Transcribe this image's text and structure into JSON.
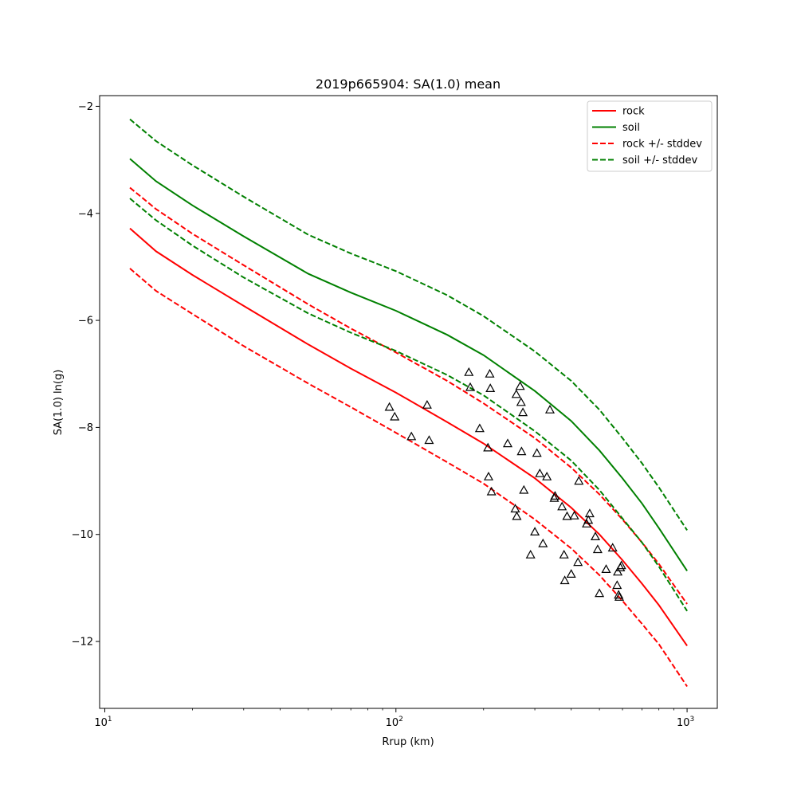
{
  "chart_data": {
    "type": "line",
    "title": "2019p665904: SA(1.0) mean",
    "xlabel": "Rrup (km)",
    "ylabel": "SA(1.0) ln(g)",
    "xscale": "log",
    "xlim": [
      9.6,
      1270
    ],
    "ylim": [
      -13.25,
      -1.8
    ],
    "xticks": [
      {
        "value": 10,
        "base": "10",
        "exp": "1"
      },
      {
        "value": 100,
        "base": "10",
        "exp": "2"
      },
      {
        "value": 1000,
        "base": "10",
        "exp": "3"
      }
    ],
    "yticks": [
      {
        "value": -2,
        "label": "−2"
      },
      {
        "value": -4,
        "label": "−4"
      },
      {
        "value": -6,
        "label": "−6"
      },
      {
        "value": -8,
        "label": "−8"
      },
      {
        "value": -10,
        "label": "−10"
      },
      {
        "value": -12,
        "label": "−12"
      }
    ],
    "grid": false,
    "legend_position": "top-right",
    "x": [
      12.2,
      15,
      20,
      30,
      50,
      70,
      100,
      150,
      200,
      300,
      400,
      500,
      600,
      700,
      800,
      1000
    ],
    "series": [
      {
        "name": "rock",
        "color": "#ff0000",
        "style": "solid",
        "values": [
          -4.28,
          -4.71,
          -5.15,
          -5.73,
          -6.45,
          -6.9,
          -7.35,
          -7.9,
          -8.3,
          -8.95,
          -9.5,
          -10.0,
          -10.48,
          -10.92,
          -11.32,
          -12.08
        ]
      },
      {
        "name": "soil",
        "color": "#008000",
        "style": "solid",
        "values": [
          -2.98,
          -3.4,
          -3.85,
          -4.43,
          -5.13,
          -5.48,
          -5.82,
          -6.27,
          -6.65,
          -7.32,
          -7.88,
          -8.43,
          -8.95,
          -9.42,
          -9.88,
          -10.68
        ]
      },
      {
        "name": "rock +/- stddev",
        "color": "#ff0000",
        "style": "dashed",
        "legend": true,
        "values": [
          -3.52,
          -3.92,
          -4.38,
          -4.97,
          -5.7,
          -6.15,
          -6.6,
          -7.13,
          -7.55,
          -8.2,
          -8.75,
          -9.25,
          -9.72,
          -10.15,
          -10.55,
          -11.3
        ]
      },
      {
        "name": "rock +/- stddev",
        "color": "#ff0000",
        "style": "dashed",
        "legend": false,
        "values": [
          -5.03,
          -5.45,
          -5.88,
          -6.48,
          -7.18,
          -7.62,
          -8.1,
          -8.65,
          -9.05,
          -9.72,
          -10.26,
          -10.76,
          -11.24,
          -11.67,
          -12.05,
          -12.84
        ]
      },
      {
        "name": "soil +/- stddev",
        "color": "#008000",
        "style": "dashed",
        "legend": true,
        "values": [
          -2.24,
          -2.65,
          -3.1,
          -3.69,
          -4.4,
          -4.75,
          -5.08,
          -5.53,
          -5.92,
          -6.58,
          -7.13,
          -7.67,
          -8.2,
          -8.67,
          -9.12,
          -9.92
        ]
      },
      {
        "name": "soil +/- stddev",
        "color": "#008000",
        "style": "dashed",
        "legend": false,
        "values": [
          -3.72,
          -4.13,
          -4.6,
          -5.2,
          -5.87,
          -6.23,
          -6.57,
          -7.02,
          -7.4,
          -8.07,
          -8.62,
          -9.17,
          -9.7,
          -10.15,
          -10.6,
          -11.43
        ]
      }
    ],
    "observations": {
      "marker": "triangle",
      "points": [
        [
          95,
          -7.62
        ],
        [
          99,
          -7.8
        ],
        [
          113,
          -8.17
        ],
        [
          128,
          -7.58
        ],
        [
          130,
          -8.24
        ],
        [
          178,
          -6.97
        ],
        [
          180,
          -7.25
        ],
        [
          194,
          -8.02
        ],
        [
          207,
          -8.38
        ],
        [
          208,
          -8.92
        ],
        [
          210,
          -7.0
        ],
        [
          211,
          -7.27
        ],
        [
          213,
          -9.2
        ],
        [
          242,
          -8.3
        ],
        [
          257,
          -9.52
        ],
        [
          259,
          -7.38
        ],
        [
          260,
          -9.66
        ],
        [
          267,
          -7.23
        ],
        [
          269,
          -7.53
        ],
        [
          270,
          -8.45
        ],
        [
          273,
          -7.72
        ],
        [
          275,
          -9.17
        ],
        [
          290,
          -10.38
        ],
        [
          300,
          -9.95
        ],
        [
          305,
          -8.48
        ],
        [
          312,
          -8.86
        ],
        [
          320,
          -10.17
        ],
        [
          330,
          -8.92
        ],
        [
          338,
          -7.67
        ],
        [
          350,
          -9.32
        ],
        [
          352,
          -9.28
        ],
        [
          372,
          -9.48
        ],
        [
          378,
          -10.38
        ],
        [
          380,
          -10.86
        ],
        [
          387,
          -9.66
        ],
        [
          400,
          -10.74
        ],
        [
          410,
          -9.65
        ],
        [
          422,
          -10.52
        ],
        [
          425,
          -9.0
        ],
        [
          452,
          -9.8
        ],
        [
          458,
          -9.73
        ],
        [
          463,
          -9.61
        ],
        [
          484,
          -10.04
        ],
        [
          493,
          -10.28
        ],
        [
          500,
          -11.1
        ],
        [
          527,
          -10.65
        ],
        [
          555,
          -10.25
        ],
        [
          575,
          -10.95
        ],
        [
          578,
          -10.7
        ],
        [
          582,
          -11.13
        ],
        [
          585,
          -11.17
        ],
        [
          590,
          -10.62
        ],
        [
          595,
          -10.58
        ]
      ]
    }
  }
}
